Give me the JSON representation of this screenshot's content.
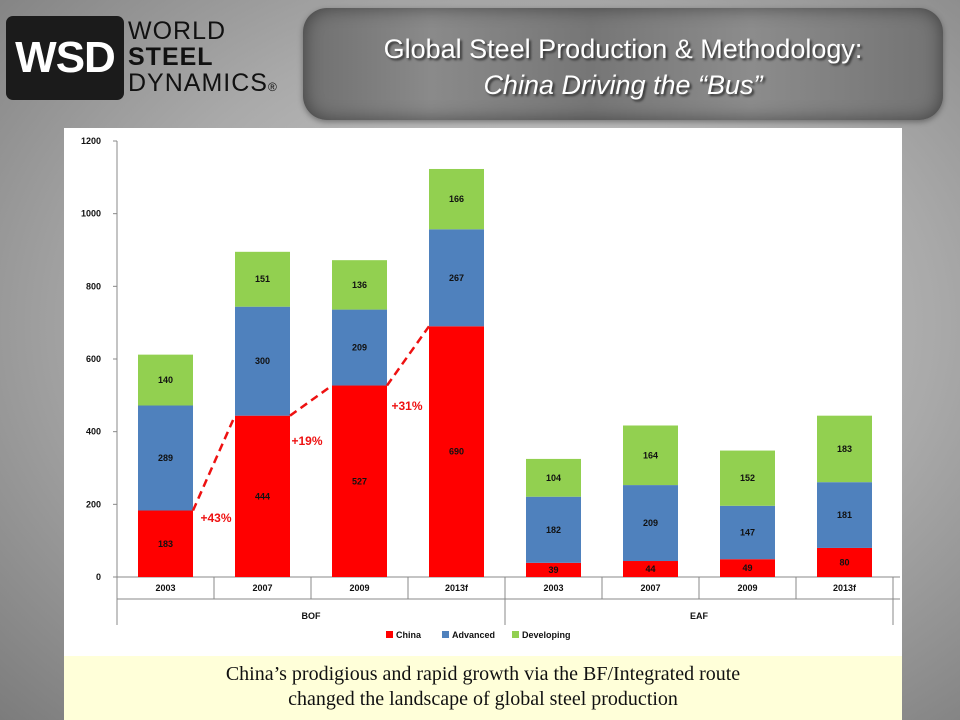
{
  "logo": {
    "abbr": "WSD",
    "line1": "WORLD",
    "line2": "STEEL",
    "line3": "DYNAMICS",
    "mark": "®"
  },
  "header": {
    "title_line1": "Global Steel Production & Methodology:",
    "title_line2": "China Driving the “Bus”"
  },
  "caption": {
    "line1": "China’s prodigious and rapid growth via the BF/Integrated route",
    "line2": "changed the landscape of global steel production"
  },
  "colors": {
    "China": "#ff0000",
    "Advanced": "#4f81bd",
    "Developing": "#92d050"
  },
  "chart_data": {
    "type": "bar",
    "stacked": true,
    "groups": [
      {
        "label": "BOF",
        "categories": [
          "2003",
          "2007",
          "2009",
          "2013f"
        ]
      },
      {
        "label": "EAF",
        "categories": [
          "2003",
          "2007",
          "2009",
          "2013f"
        ]
      }
    ],
    "series": [
      {
        "name": "China",
        "values": [
          183,
          444,
          527,
          690,
          39,
          44,
          49,
          80
        ]
      },
      {
        "name": "Advanced",
        "values": [
          289,
          300,
          209,
          267,
          182,
          209,
          147,
          181
        ]
      },
      {
        "name": "Developing",
        "values": [
          140,
          151,
          136,
          166,
          104,
          164,
          152,
          183
        ]
      }
    ],
    "ylim": [
      0,
      1200
    ],
    "yticks": [
      0,
      200,
      400,
      600,
      800,
      1000,
      1200
    ],
    "annotations": [
      {
        "text": "+43%",
        "from_index": 0,
        "to_index": 1
      },
      {
        "text": "+19%",
        "from_index": 1,
        "to_index": 2
      },
      {
        "text": "+31%",
        "from_index": 2,
        "to_index": 3
      }
    ],
    "legend": {
      "position": "bottom",
      "entries": [
        "China",
        "Advanced",
        "Developing"
      ]
    },
    "grid": false
  }
}
